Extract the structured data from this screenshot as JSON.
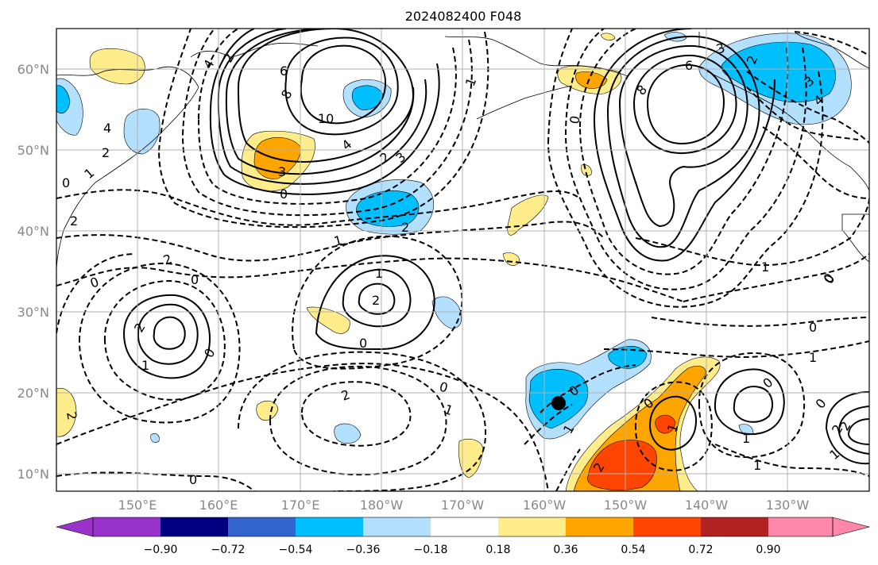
{
  "title": "2024082400 F048",
  "axes": {
    "lat_labels": [
      "60°N",
      "50°N",
      "40°N",
      "30°N",
      "20°N",
      "10°N"
    ],
    "lon_labels": [
      "150°E",
      "160°E",
      "170°E",
      "180°W",
      "170°W",
      "160°W",
      "150°W",
      "140°W",
      "130°W"
    ],
    "lon_range": [
      140,
      240
    ],
    "lat_range": [
      8,
      65
    ]
  },
  "colorbar": {
    "tick_labels": [
      "−0.90",
      "−0.72",
      "−0.54",
      "−0.36",
      "−0.18",
      "0.18",
      "0.36",
      "0.54",
      "0.72",
      "0.90"
    ],
    "colors": [
      "#9933cc",
      "#000080",
      "#3366cc",
      "#00bfff",
      "#b3e0ff",
      "#ffffff",
      "#ffec8b",
      "#ffa500",
      "#ff4500",
      "#b22222",
      "#ff88aa"
    ],
    "extend": "both"
  },
  "contour_labels": [
    {
      "t": "4"
    },
    {
      "t": "6"
    },
    {
      "t": "8"
    },
    {
      "t": "10"
    },
    {
      "t": "2"
    },
    {
      "t": "4"
    },
    {
      "t": "3"
    },
    {
      "t": "0"
    },
    {
      "t": "2"
    },
    {
      "t": "3"
    },
    {
      "t": "4"
    },
    {
      "t": "2"
    },
    {
      "t": "1"
    },
    {
      "t": "0"
    },
    {
      "t": "2"
    },
    {
      "t": "2"
    },
    {
      "t": "0"
    },
    {
      "t": "1"
    },
    {
      "t": "2"
    },
    {
      "t": "0"
    },
    {
      "t": "1"
    },
    {
      "t": "2"
    },
    {
      "t": "1"
    },
    {
      "t": "0"
    },
    {
      "t": "0"
    },
    {
      "t": "2"
    },
    {
      "t": "0"
    },
    {
      "t": "1"
    },
    {
      "t": "2"
    },
    {
      "t": "0"
    },
    {
      "t": "0"
    },
    {
      "t": "1"
    },
    {
      "t": "2"
    },
    {
      "t": "1"
    },
    {
      "t": "0"
    },
    {
      "t": "8"
    },
    {
      "t": "6"
    },
    {
      "t": "0"
    },
    {
      "t": "3"
    },
    {
      "t": "2"
    },
    {
      "t": "3"
    },
    {
      "t": "4"
    },
    {
      "t": "1"
    },
    {
      "t": "0"
    },
    {
      "t": "0"
    },
    {
      "t": "1"
    },
    {
      "t": "0"
    },
    {
      "t": "1"
    },
    {
      "t": "1"
    },
    {
      "t": "2"
    },
    {
      "t": "1"
    },
    {
      "t": "2"
    },
    {
      "t": "1"
    },
    {
      "t": "0"
    },
    {
      "t": "0"
    },
    {
      "t": "2"
    }
  ],
  "colors": {
    "background": "#ffffff",
    "frame": "#000000",
    "grid": "#b0b0b0",
    "contour": "#000000"
  }
}
